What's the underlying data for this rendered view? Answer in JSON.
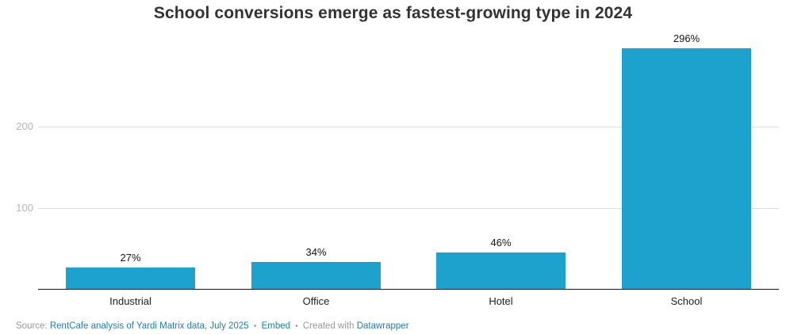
{
  "chart_data": {
    "type": "bar",
    "title": "School conversions emerge as fastest-growing type in 2024",
    "categories": [
      "Industrial",
      "Office",
      "Hotel",
      "School"
    ],
    "values": [
      27,
      34,
      46,
      296
    ],
    "value_labels": [
      "27%",
      "34%",
      "46%",
      "296%"
    ],
    "xlabel": "",
    "ylabel": "",
    "ylim": [
      0,
      300
    ],
    "yticks": [
      100,
      200
    ],
    "grid": true,
    "legend": "none",
    "bar_color": "#1CA2CC"
  },
  "footer": {
    "source_prefix": "Source:",
    "source_link": "RentCafe analysis of Yardi Matrix data, July 2025",
    "separator": "•",
    "embed_link": "Embed",
    "created_with": "Created with",
    "datawrapper_link": "Datawrapper"
  },
  "colors": {
    "bar": "#1CA2CC",
    "title": "#333333",
    "gridline": "#dddddd",
    "tick_label": "#b5b5b5",
    "axis_line": "#141414",
    "footer_text": "#979797",
    "link": "#1d7eb5"
  }
}
